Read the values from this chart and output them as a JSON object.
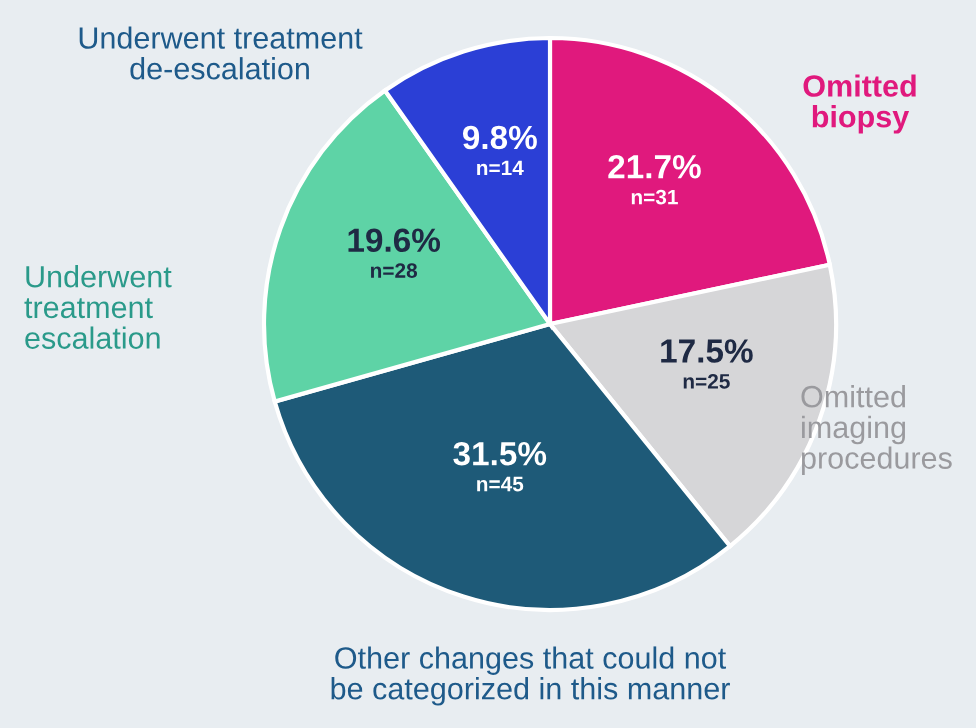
{
  "chart_data": {
    "type": "pie",
    "categories": [
      "Omitted biopsy",
      "Omitted imaging procedures",
      "Other changes that could not be categorized in this manner",
      "Underwent treatment escalation",
      "Underwent treatment de-escalation"
    ],
    "values": [
      21.7,
      17.5,
      31.5,
      19.6,
      9.8
    ],
    "colors": [
      "#e0197d",
      "#d6d6d8",
      "#1e5a78",
      "#5ed3a6",
      "#2b3fd6"
    ],
    "value_labels": [
      "21.7%\nn=31",
      "17.5%\nn=25",
      "31.5%\nn=45",
      "19.6%\nn=28",
      "9.8%\nn=14"
    ]
  }
}
